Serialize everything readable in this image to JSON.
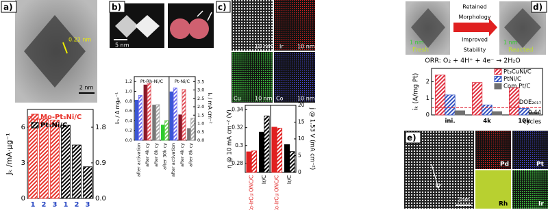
{
  "figure": {
    "panel_labels": [
      "a)",
      "b)",
      "c)",
      "d)",
      "e)"
    ],
    "a_image": [
      "0.22 nm",
      "2 nm"
    ],
    "b_image": [
      "5 nm"
    ],
    "c_image": [
      "10 nm",
      "Ir",
      "10 nm",
      "Cu",
      "10 nm",
      "Co",
      "10 nm"
    ],
    "d_image": [
      "1 nm",
      "Fresh",
      "Retained",
      "Morphology",
      "Improved",
      "Stability",
      "1 nm",
      "Reacted"
    ],
    "e_image": [
      "2nm",
      "Pd",
      "Pt",
      "Rh",
      "Ir"
    ]
  },
  "chart_data": [
    {
      "type": "bar",
      "ylabel": "Jₖ /mA·μg⁻¹",
      "categories": [
        "1",
        "2",
        "3",
        "1",
        "2",
        "3"
      ],
      "category_color": "#2040c0",
      "series": [
        {
          "name": "Mo-Pt₃Ni/C",
          "color": "#e8332b",
          "hatched": true,
          "values": [
            6.9,
            6.7,
            6.6,
            null,
            null,
            null
          ]
        },
        {
          "name": "Pt₃Ni/C",
          "color": "#000000",
          "hatched": true,
          "axis": "y2",
          "values": [
            null,
            null,
            null,
            1.85,
            1.35,
            0.8
          ]
        }
      ],
      "ylim": [
        0,
        7.5
      ],
      "yticks": [
        0,
        3,
        6
      ],
      "y2lim": [
        0,
        2.25
      ],
      "y2ticks": [
        {
          "value": 0,
          "label": "0.0"
        },
        0.9,
        1.8
      ]
    },
    {
      "type": "bar",
      "ylabel": "Iₘ / A mgₚₜ⁻¹",
      "y2label": "Iₛ / mA cm⁻²",
      "group_labels": [
        "Pt-Rh-Ni/C",
        "Pt-Ni/C"
      ],
      "categories": [
        "after activation",
        "after 4k cy",
        "after 8k cy",
        "after 30k cy",
        "after activation",
        "after 4k cy",
        "after 8k cy"
      ],
      "series": [
        {
          "colors": [
            "#3a56d4",
            "#8b1a2a",
            "#777777",
            "#2ecc2e",
            "#3a56d4",
            "#8b1a2a",
            "#777777"
          ],
          "values": [
            0.82,
            1.13,
            0.72,
            0.31,
            0.99,
            0.52,
            0.24
          ]
        },
        {
          "colors": [
            "#6c6cf0",
            "#e0505a",
            "#aaaaaa",
            "#6fd35a",
            "#6c6cf0",
            "#e0505a",
            "#aaaaaa"
          ],
          "hatched": true,
          "axis": "y2",
          "values": [
            2.68,
            3.41,
            2.13,
            1.17,
            3.12,
            3.03,
            1.31
          ]
        }
      ],
      "ylim": [
        0,
        1.3
      ],
      "yticks": [
        {
          "value": 0,
          "label": "0.0"
        },
        0.2,
        0.4,
        0.6,
        0.8,
        {
          "value": 1,
          "label": "1.0"
        },
        1.2
      ],
      "y2lim": [
        0,
        3.8
      ],
      "y2ticks": [
        {
          "value": 0,
          "label": "0.0"
        },
        0.5,
        {
          "value": 1,
          "label": "1.0"
        },
        1.5,
        {
          "value": 2,
          "label": "2.0"
        },
        2.5,
        {
          "value": 3,
          "label": "3.0"
        },
        3.5
      ]
    },
    {
      "type": "bar",
      "ylabel": "η @ 10 mA cm⁻² (V)",
      "y2label": "j @ 1.53 V (mA cm⁻²)",
      "categories": [
        "Co-IrCu ONC/C",
        "Ir/C",
        "Co-IrCu ONC/C",
        "Ir/C"
      ],
      "category_colors": [
        "#e02020",
        "#000000",
        "#e02020",
        "#000000"
      ],
      "series": [
        {
          "colors": [
            "#e02020",
            "#000000",
            null,
            null
          ],
          "values": [
            0.293,
            0.315,
            null,
            null
          ]
        },
        {
          "colors": [
            "#e02020",
            "#000000",
            null,
            null
          ],
          "hatched": true,
          "values": [
            0.294,
            0.333,
            null,
            null
          ]
        },
        {
          "colors": [
            null,
            null,
            "#e02020",
            "#000000"
          ],
          "axis": "y2",
          "values": [
            null,
            null,
            13.5,
            8.3
          ]
        },
        {
          "colors": [
            null,
            null,
            "#e02020",
            "#000000"
          ],
          "hatched": true,
          "axis": "y2",
          "values": [
            null,
            null,
            13.2,
            6.2
          ]
        }
      ],
      "ylim": [
        0.27,
        0.345
      ],
      "yticks": [
        0.28,
        0.3,
        0.32,
        0.34
      ],
      "y2lim": [
        0,
        20
      ],
      "y2ticks": [
        0,
        5,
        10,
        15,
        20
      ]
    },
    {
      "type": "bar",
      "title": "ORR: O₂ + 4H⁺ + 4e⁻ → 2H₂O",
      "ylabel": "iₖ (A/mg Pt)",
      "xlabel": "cycles",
      "categories": [
        "ini.",
        "4k",
        "10k"
      ],
      "series": [
        {
          "name": "Pt₃CuNi/C",
          "color": "#e03040",
          "hatched": true,
          "values": [
            2.4,
            1.95,
            1.65
          ]
        },
        {
          "name": "PtNi/C",
          "color": "#3050c0",
          "hatched": true,
          "values": [
            1.2,
            0.6,
            0.4
          ]
        },
        {
          "name": "Com Pt/C",
          "color": "#707070",
          "values": [
            0.25,
            0.2,
            0.15
          ]
        }
      ],
      "reference_line": {
        "value": 0.44,
        "label": "DOE₂₀₁₇",
        "color": "#e03040"
      },
      "ylim": [
        0,
        2.8
      ],
      "yticks": [
        0,
        1,
        2
      ]
    }
  ]
}
